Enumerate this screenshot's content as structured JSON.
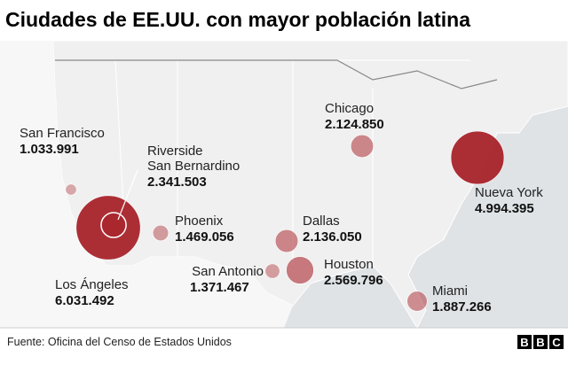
{
  "title": "Ciudades de EE.UU. con mayor población latina",
  "source": "Fuente: Oficina del Censo de Estados Unidos",
  "logo": [
    "B",
    "B",
    "C"
  ],
  "cities": [
    {
      "name": "San Francisco",
      "population": {
        "value": 1033991,
        "label": "1.033.991"
      }
    },
    {
      "name": "Los Ángeles",
      "population": {
        "value": 6031492,
        "label": "6.031.492"
      }
    },
    {
      "name": "Riverside\nSan Bernardino",
      "population": {
        "value": 2341503,
        "label": "2.341.503"
      }
    },
    {
      "name": "Phoenix",
      "population": {
        "value": 1469056,
        "label": "1.469.056"
      }
    },
    {
      "name": "Dallas",
      "population": {
        "value": 2136050,
        "label": "2.136.050"
      }
    },
    {
      "name": "San Antonio",
      "population": {
        "value": 1371467,
        "label": "1.371.467"
      }
    },
    {
      "name": "Houston",
      "population": {
        "value": 2569796,
        "label": "2.569.796"
      }
    },
    {
      "name": "Chicago",
      "population": {
        "value": 2124850,
        "label": "2.124.850"
      }
    },
    {
      "name": "Nueva York",
      "population": {
        "value": 4994395,
        "label": "4.994.395"
      }
    },
    {
      "name": "Miami",
      "population": {
        "value": 1887266,
        "label": "1.887.266"
      }
    }
  ]
}
